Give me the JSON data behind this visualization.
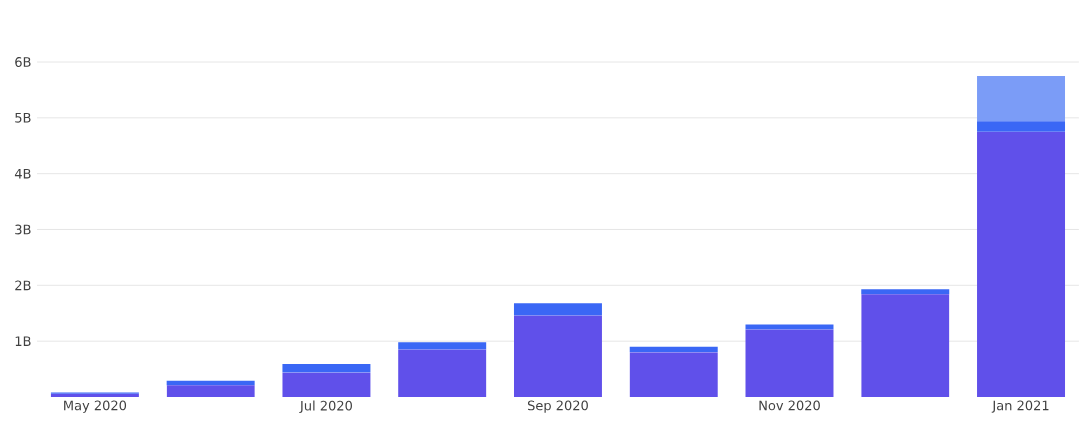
{
  "chart_data": {
    "type": "bar",
    "stacked": true,
    "categories": [
      "May 2020",
      null,
      "Jul 2020",
      null,
      "Sep 2020",
      null,
      "Nov 2020",
      null,
      "Jan 2021"
    ],
    "series": [
      {
        "color": "#6050ea",
        "values": [
          0.06,
          0.21,
          0.44,
          0.85,
          1.46,
          0.8,
          1.21,
          1.84,
          4.75
        ]
      },
      {
        "color": "#3a67f5",
        "values": [
          0.02,
          0.08,
          0.15,
          0.13,
          0.22,
          0.1,
          0.09,
          0.09,
          0.19
        ]
      },
      {
        "color": "#7b9cf7",
        "values": [
          null,
          null,
          null,
          null,
          null,
          null,
          null,
          null,
          0.81
        ]
      }
    ],
    "ylim": [
      0,
      6
    ],
    "yticks": [
      {
        "value": 1,
        "label": "1B"
      },
      {
        "value": 2,
        "label": "2B"
      },
      {
        "value": 3,
        "label": "3B"
      },
      {
        "value": 4,
        "label": "4B"
      },
      {
        "value": 5,
        "label": "5B"
      },
      {
        "value": 6,
        "label": "6B"
      }
    ],
    "grid": "y"
  }
}
